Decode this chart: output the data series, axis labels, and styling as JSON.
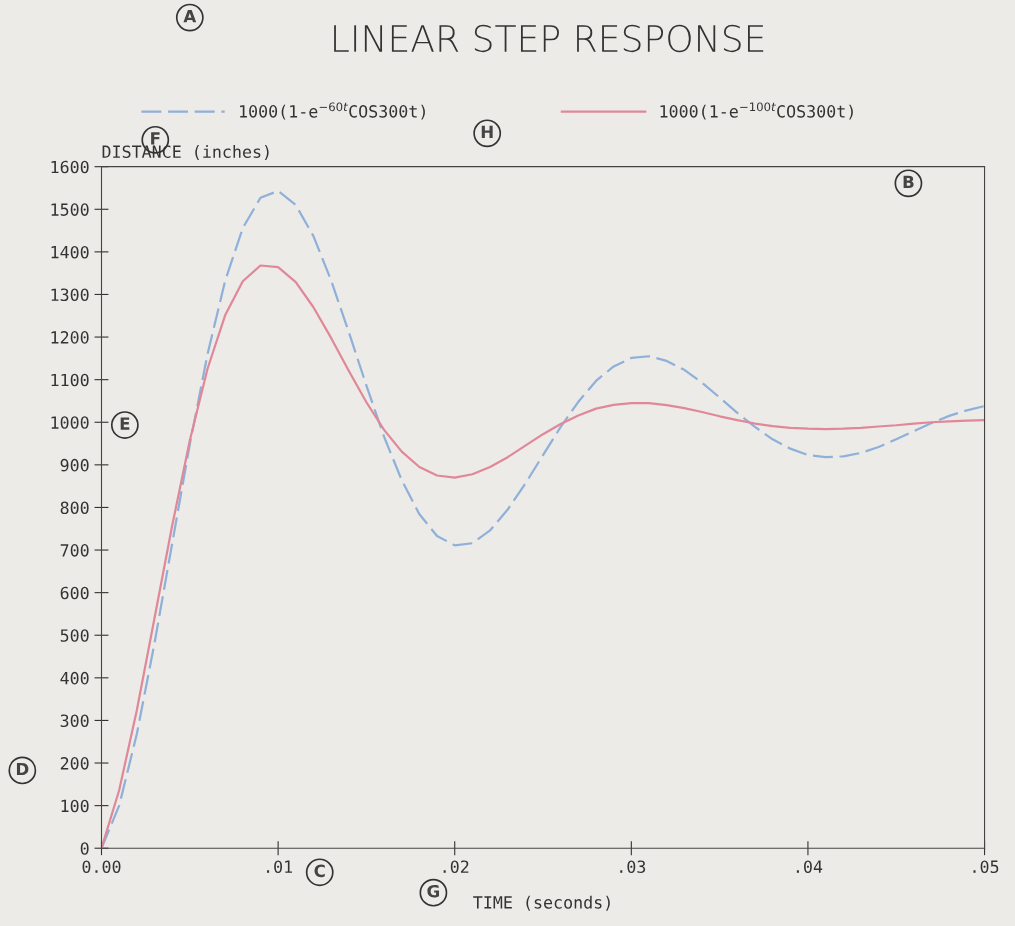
{
  "chart_data": {
    "type": "line",
    "title": "LINEAR STEP RESPONSE",
    "xlabel": "TIME (seconds)",
    "ylabel": "DISTANCE (inches)",
    "x": [
      0,
      0.001,
      0.002,
      0.003,
      0.004,
      0.005,
      0.006,
      0.007,
      0.008,
      0.009,
      0.01,
      0.011,
      0.012,
      0.013,
      0.014,
      0.015,
      0.016,
      0.017,
      0.018,
      0.019,
      0.02,
      0.021,
      0.022,
      0.023,
      0.024,
      0.025,
      0.026,
      0.027,
      0.028,
      0.029,
      0.03,
      0.031,
      0.032,
      0.033,
      0.034,
      0.035,
      0.036,
      0.037,
      0.038,
      0.039,
      0.04,
      0.041,
      0.042,
      0.043,
      0.044,
      0.045,
      0.046,
      0.047,
      0.048,
      0.049,
      0.05
    ],
    "series": [
      {
        "name": "1000(1-e$^{−60t}$COS300t)",
        "color": "#8fb0d8",
        "line_style": "dashed",
        "values": [
          0,
          100,
          268,
          481,
          715,
          948,
          1159,
          1332,
          1456,
          1527,
          1543,
          1510,
          1437,
          1333,
          1212,
          1086,
          966,
          864,
          784,
          733,
          711,
          716,
          746,
          795,
          856,
          923,
          989,
          1048,
          1097,
          1131,
          1151,
          1155,
          1144,
          1123,
          1093,
          1058,
          1022,
          989,
          960,
          938,
          923,
          918,
          920,
          928,
          942,
          960,
          979,
          998,
          1015,
          1028,
          1038
        ]
      },
      {
        "name": "1000(1-e$^{−100t}$COS300t)",
        "color": "#e08898",
        "line_style": "solid",
        "values": [
          0,
          136,
          324,
          540,
          757,
          957,
          1125,
          1251,
          1331,
          1368,
          1364,
          1329,
          1270,
          1198,
          1121,
          1047,
          982,
          931,
          895,
          875,
          870,
          878,
          895,
          918,
          945,
          972,
          996,
          1016,
          1032,
          1041,
          1045,
          1045,
          1040,
          1033,
          1024,
          1014,
          1005,
          997,
          991,
          987,
          985,
          984,
          985,
          987,
          990,
          993,
          997,
          1000,
          1002,
          1004,
          1005
        ]
      }
    ],
    "xlim": [
      0,
      0.05
    ],
    "xticks": [
      {
        "value": 0,
        "label": "0.00"
      },
      {
        "value": 0.01,
        "label": ".01"
      },
      {
        "value": 0.02,
        "label": ".02"
      },
      {
        "value": 0.03,
        "label": ".03"
      },
      {
        "value": 0.04,
        "label": ".04"
      },
      {
        "value": 0.05,
        "label": ".05"
      }
    ],
    "ylim": [
      0,
      1600
    ],
    "yticks": [
      0,
      100,
      200,
      300,
      400,
      500,
      600,
      700,
      800,
      900,
      1000,
      1100,
      1200,
      1300,
      1400,
      1500,
      1600
    ],
    "grid": false,
    "legend": "top",
    "marker": "none",
    "annotations": [
      "A",
      "B",
      "C",
      "D",
      "E",
      "F",
      "G",
      "H"
    ]
  }
}
